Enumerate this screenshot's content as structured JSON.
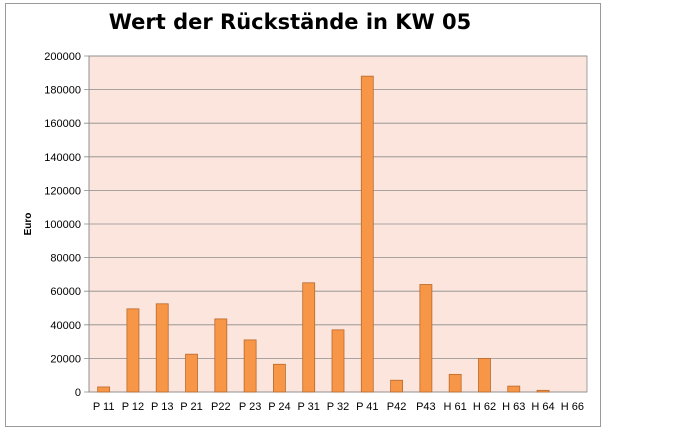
{
  "chart_data": {
    "type": "bar",
    "title": "Wert der Rückstände in KW 05",
    "xlabel": "",
    "ylabel": "Euro",
    "ylim": [
      0,
      200000
    ],
    "ytick_step": 20000,
    "grid": true,
    "legend": "none",
    "categories": [
      "P 11",
      "P 12",
      "P 13",
      "P 21",
      "P22",
      "P 23",
      "P 24",
      "P 31",
      "P 32",
      "P 41",
      "P42",
      "P43",
      "H 61",
      "H 62",
      "H 63",
      "H 64",
      "H 66"
    ],
    "values": [
      3000,
      49500,
      52500,
      22500,
      43500,
      31000,
      16500,
      65000,
      37000,
      188000,
      7000,
      64000,
      10500,
      20000,
      3500,
      1000,
      0
    ],
    "colors": {
      "bar": "#f79646",
      "bar_border": "#b86a2e",
      "plot_bg": "#fbe5dc",
      "grid": "#8c8c8c"
    }
  }
}
